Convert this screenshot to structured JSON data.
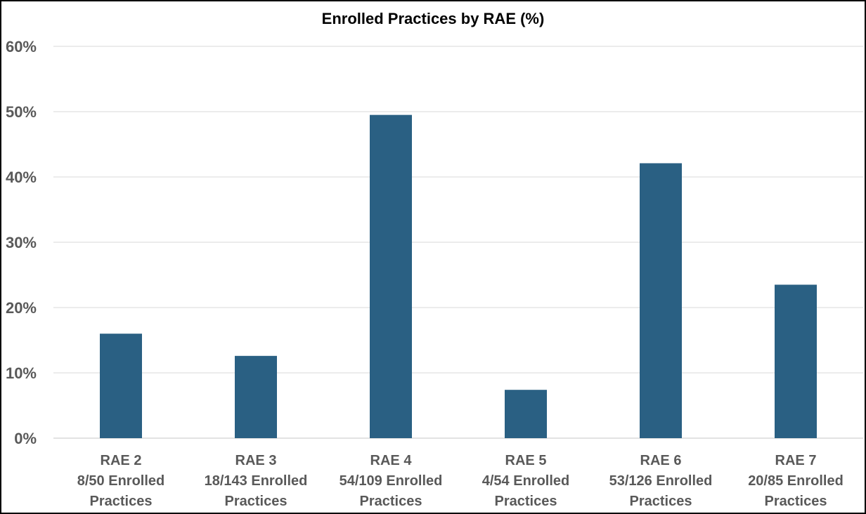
{
  "chart_data": {
    "type": "bar",
    "title": "Enrolled Practices by RAE (%)",
    "xlabel": "",
    "ylabel": "",
    "ylim": [
      0,
      60
    ],
    "yticks": [
      "0%",
      "10%",
      "20%",
      "30%",
      "40%",
      "50%",
      "60%"
    ],
    "grid": true,
    "categories": [
      [
        "RAE 2",
        "8/50 Enrolled",
        "Practices"
      ],
      [
        "RAE 3",
        "18/143 Enrolled",
        "Practices"
      ],
      [
        "RAE 4",
        "54/109 Enrolled",
        "Practices"
      ],
      [
        "RAE 5",
        "4/54 Enrolled",
        "Practices"
      ],
      [
        "RAE 6",
        "53/126 Enrolled",
        "Practices"
      ],
      [
        "RAE 7",
        "20/85 Enrolled",
        "Practices"
      ]
    ],
    "values": [
      16.0,
      12.6,
      49.5,
      7.4,
      42.1,
      23.5
    ],
    "colors": {
      "bar": "#2a6083",
      "grid": "#d9d9d9",
      "axis": "#d9d9d9",
      "tick_text": "#595959"
    }
  }
}
